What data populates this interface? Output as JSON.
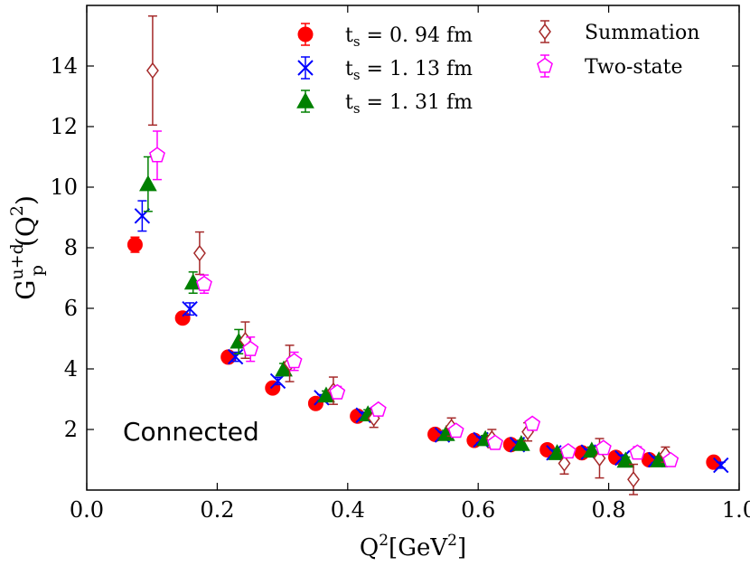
{
  "chart_data": {
    "type": "scatter",
    "title": "",
    "xlabel_main": "Q",
    "xlabel_sup": "2",
    "xlabel_unit_open": "[GeV",
    "xlabel_unit_sup": "2",
    "xlabel_unit_close": "]",
    "ylabel_main": "G",
    "ylabel_sub": "p",
    "ylabel_sup": "u+d",
    "ylabel_arg_open": "(Q",
    "ylabel_arg_sup": "2",
    "ylabel_arg_close": ")",
    "xlim": [
      0.0,
      1.0
    ],
    "ylim": [
      0.0,
      16.0
    ],
    "x_ticks": [
      0.0,
      0.2,
      0.4,
      0.6,
      0.8,
      1.0
    ],
    "x_tick_labels": [
      "0.0",
      "0.2",
      "0.4",
      "0.6",
      "0.8",
      "1.0"
    ],
    "y_ticks": [
      2,
      4,
      6,
      8,
      10,
      12,
      14
    ],
    "y_tick_labels": [
      "2",
      "4",
      "6",
      "8",
      "10",
      "12",
      "14"
    ],
    "annotation": "Connected",
    "legend_position": "top-right",
    "series": [
      {
        "name": "t_s = 0.94 fm",
        "legend_base": "t",
        "legend_sub": "s",
        "legend_rest": " = 0. 94 fm",
        "marker": "circle",
        "color": "#ff0000",
        "points": [
          {
            "x": 0.074,
            "y": 8.1,
            "err": 0.25
          },
          {
            "x": 0.147,
            "y": 5.68,
            "err": 0.1
          },
          {
            "x": 0.217,
            "y": 4.39,
            "err": 0.08
          },
          {
            "x": 0.285,
            "y": 3.37,
            "err": 0.08
          },
          {
            "x": 0.351,
            "y": 2.86,
            "err": 0.08
          },
          {
            "x": 0.415,
            "y": 2.44,
            "err": 0.08
          },
          {
            "x": 0.534,
            "y": 1.84,
            "err": 0.08
          },
          {
            "x": 0.594,
            "y": 1.64,
            "err": 0.08
          },
          {
            "x": 0.65,
            "y": 1.5,
            "err": 0.08
          },
          {
            "x": 0.706,
            "y": 1.33,
            "err": 0.08
          },
          {
            "x": 0.759,
            "y": 1.23,
            "err": 0.08
          },
          {
            "x": 0.811,
            "y": 1.08,
            "err": 0.08
          },
          {
            "x": 0.862,
            "y": 1.0,
            "err": 0.08
          },
          {
            "x": 0.961,
            "y": 0.92,
            "err": 0.08
          }
        ]
      },
      {
        "name": "t_s = 1.13 fm",
        "legend_base": "t",
        "legend_sub": "s",
        "legend_rest": " = 1. 13 fm",
        "marker": "x",
        "color": "#0000ff",
        "points": [
          {
            "x": 0.085,
            "y": 9.05,
            "err": 0.5
          },
          {
            "x": 0.158,
            "y": 5.98,
            "err": 0.2
          },
          {
            "x": 0.228,
            "y": 4.4,
            "err": 0.15
          },
          {
            "x": 0.293,
            "y": 3.6,
            "err": 0.12
          },
          {
            "x": 0.36,
            "y": 3.05,
            "err": 0.1
          },
          {
            "x": 0.424,
            "y": 2.47,
            "err": 0.1
          },
          {
            "x": 0.545,
            "y": 1.82,
            "err": 0.1
          },
          {
            "x": 0.604,
            "y": 1.66,
            "err": 0.1
          },
          {
            "x": 0.66,
            "y": 1.5,
            "err": 0.1
          },
          {
            "x": 0.716,
            "y": 1.23,
            "err": 0.1
          },
          {
            "x": 0.769,
            "y": 1.25,
            "err": 0.1
          },
          {
            "x": 0.821,
            "y": 1.06,
            "err": 0.1
          },
          {
            "x": 0.872,
            "y": 1.0,
            "err": 0.1
          },
          {
            "x": 0.972,
            "y": 0.82,
            "err": 0.1
          }
        ]
      },
      {
        "name": "t_s = 1.31 fm",
        "legend_base": "t",
        "legend_sub": "s",
        "legend_rest": " = 1. 31 fm",
        "marker": "triangle",
        "color": "#008000",
        "points": [
          {
            "x": 0.094,
            "y": 10.1,
            "err": 0.9
          },
          {
            "x": 0.163,
            "y": 6.85,
            "err": 0.35
          },
          {
            "x": 0.233,
            "y": 4.9,
            "err": 0.4
          },
          {
            "x": 0.302,
            "y": 3.98,
            "err": 0.2
          },
          {
            "x": 0.367,
            "y": 3.12,
            "err": 0.15
          },
          {
            "x": 0.431,
            "y": 2.5,
            "err": 0.15
          },
          {
            "x": 0.551,
            "y": 1.85,
            "err": 0.12
          },
          {
            "x": 0.611,
            "y": 1.68,
            "err": 0.12
          },
          {
            "x": 0.666,
            "y": 1.52,
            "err": 0.12
          },
          {
            "x": 0.721,
            "y": 1.22,
            "err": 0.12
          },
          {
            "x": 0.774,
            "y": 1.3,
            "err": 0.12
          },
          {
            "x": 0.826,
            "y": 0.97,
            "err": 0.12
          },
          {
            "x": 0.877,
            "y": 0.98,
            "err": 0.12
          }
        ]
      },
      {
        "name": "Summation",
        "legend_base": "Summation",
        "legend_sub": "",
        "legend_rest": "",
        "marker": "diamond",
        "color": "#a52a2a",
        "points": [
          {
            "x": 0.101,
            "y": 13.85,
            "err": 1.8
          },
          {
            "x": 0.173,
            "y": 7.82,
            "err": 0.7
          },
          {
            "x": 0.243,
            "y": 4.95,
            "err": 0.6
          },
          {
            "x": 0.311,
            "y": 4.18,
            "err": 0.6
          },
          {
            "x": 0.378,
            "y": 3.28,
            "err": 0.45
          },
          {
            "x": 0.44,
            "y": 2.37,
            "err": 0.3
          },
          {
            "x": 0.559,
            "y": 2.08,
            "err": 0.3
          },
          {
            "x": 0.621,
            "y": 1.7,
            "err": 0.3
          },
          {
            "x": 0.676,
            "y": 1.92,
            "err": 0.3
          },
          {
            "x": 0.732,
            "y": 0.88,
            "err": 0.35
          },
          {
            "x": 0.786,
            "y": 1.05,
            "err": 0.65
          },
          {
            "x": 0.838,
            "y": 0.35,
            "err": 0.5
          },
          {
            "x": 0.887,
            "y": 1.17,
            "err": 0.25
          }
        ]
      },
      {
        "name": "Two-state",
        "legend_base": "Two-state",
        "legend_sub": "",
        "legend_rest": "",
        "marker": "pentagon",
        "color": "#ff00ff",
        "points": [
          {
            "x": 0.108,
            "y": 11.05,
            "err": 0.8
          },
          {
            "x": 0.18,
            "y": 6.8,
            "err": 0.3
          },
          {
            "x": 0.251,
            "y": 4.65,
            "err": 0.4
          },
          {
            "x": 0.318,
            "y": 4.25,
            "err": 0.3
          },
          {
            "x": 0.384,
            "y": 3.22,
            "err": 0.2
          },
          {
            "x": 0.447,
            "y": 2.65,
            "err": 0.15
          },
          {
            "x": 0.566,
            "y": 1.95,
            "err": 0.15
          },
          {
            "x": 0.626,
            "y": 1.55,
            "err": 0.15
          },
          {
            "x": 0.683,
            "y": 2.18,
            "err": 0.15
          },
          {
            "x": 0.738,
            "y": 1.27,
            "err": 0.15
          },
          {
            "x": 0.792,
            "y": 1.38,
            "err": 0.15
          },
          {
            "x": 0.844,
            "y": 1.23,
            "err": 0.2
          },
          {
            "x": 0.895,
            "y": 0.98,
            "err": 0.15
          }
        ]
      }
    ]
  }
}
